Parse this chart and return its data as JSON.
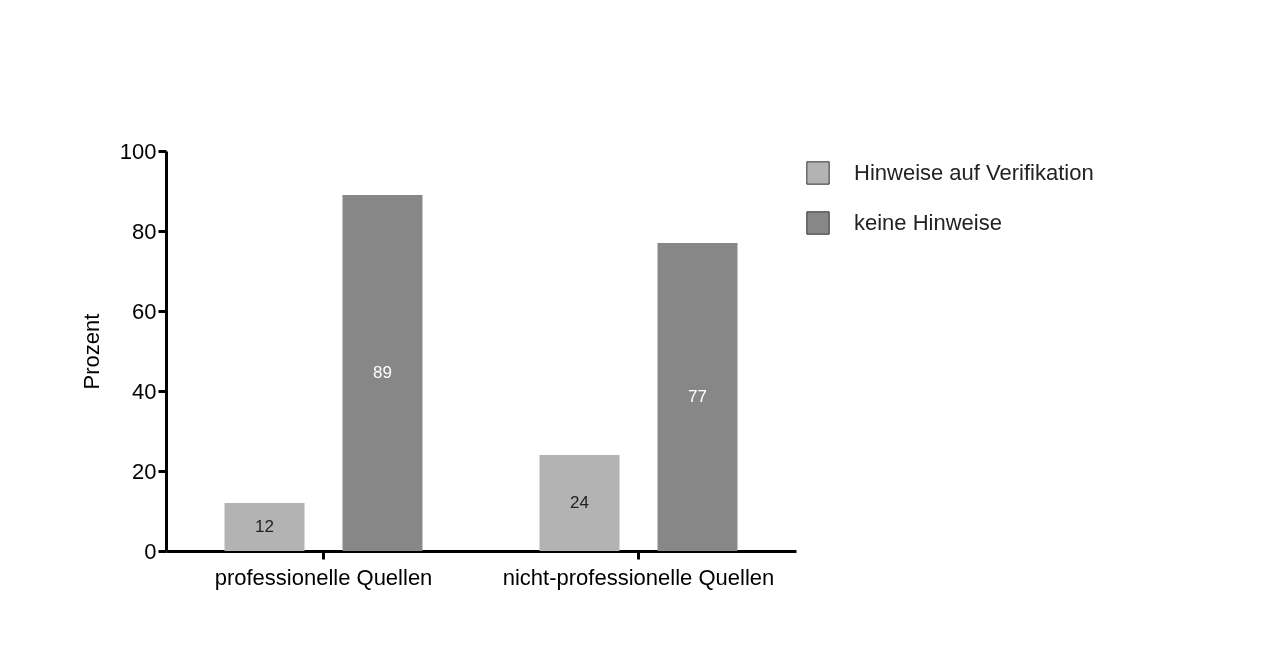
{
  "chart_data": {
    "type": "bar",
    "ylabel": "Prozent",
    "categories": [
      "professionelle Quellen",
      "nicht-professionelle Quellen"
    ],
    "series": [
      {
        "name": "Hinweise auf Verifikation",
        "color": "#b3b3b3",
        "values": [
          12,
          24
        ]
      },
      {
        "name": "keine Hinweise",
        "color": "#878787",
        "values": [
          89,
          77
        ]
      }
    ],
    "ylim": [
      0,
      100
    ],
    "yticks": [
      0,
      20,
      40,
      60,
      80,
      100
    ],
    "grid": false,
    "legend": "top right",
    "data_labels": true
  }
}
